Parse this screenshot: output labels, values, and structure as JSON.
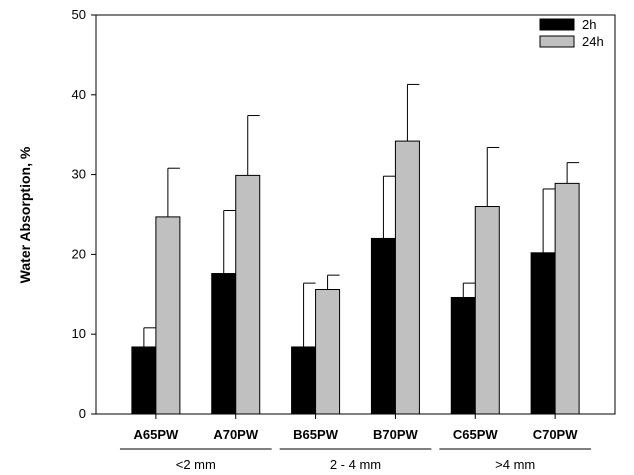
{
  "chart_data": {
    "type": "bar",
    "ylabel": "Water Absorption, %",
    "xlabel": "",
    "ylim": [
      0,
      50
    ],
    "yticks": [
      0,
      10,
      20,
      30,
      40,
      50
    ],
    "categories": [
      "A65PW",
      "A70PW",
      "B65PW",
      "B70PW",
      "C65PW",
      "C70PW"
    ],
    "groups": [
      {
        "label": "<2 mm",
        "categories": [
          "A65PW",
          "A70PW"
        ]
      },
      {
        "label": "2 - 4 mm",
        "categories": [
          "B65PW",
          "B70PW"
        ]
      },
      {
        "label": ">4 mm",
        "categories": [
          "C65PW",
          "C70PW"
        ]
      }
    ],
    "series": [
      {
        "name": "2h",
        "color": "#000000",
        "values": [
          8.4,
          17.6,
          8.4,
          22.0,
          14.6,
          20.2
        ],
        "error": [
          2.4,
          7.9,
          8.0,
          7.8,
          1.8,
          8.0
        ]
      },
      {
        "name": "24h",
        "color": "#c0c0c0",
        "values": [
          24.7,
          29.9,
          15.6,
          34.2,
          26.0,
          28.9
        ],
        "error": [
          6.1,
          7.5,
          1.8,
          7.1,
          7.4,
          2.6
        ]
      }
    ],
    "legend_position": "top-right",
    "grid": false
  }
}
